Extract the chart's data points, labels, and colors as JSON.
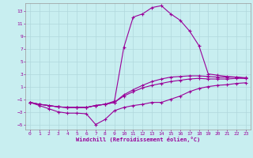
{
  "xlabel": "Windchill (Refroidissement éolien,°C)",
  "xlim": [
    -0.5,
    23.5
  ],
  "ylim": [
    -5.8,
    14.2
  ],
  "yticks": [
    -5,
    -3,
    -1,
    1,
    3,
    5,
    7,
    9,
    11,
    13
  ],
  "xticks": [
    0,
    1,
    2,
    3,
    4,
    5,
    6,
    7,
    8,
    9,
    10,
    11,
    12,
    13,
    14,
    15,
    16,
    17,
    18,
    19,
    20,
    21,
    22,
    23
  ],
  "bg_color": "#c8eef0",
  "grid_color": "#b0d8dc",
  "line_color": "#990099",
  "line1": [
    -1.5,
    -2.0,
    -2.5,
    -3.0,
    -3.2,
    -3.2,
    -3.3,
    -5.0,
    -4.2,
    -2.8,
    -2.3,
    -2.0,
    -1.8,
    -1.5,
    -1.5,
    -1.0,
    -0.5,
    0.2,
    0.7,
    1.0,
    1.2,
    1.3,
    1.5,
    1.6
  ],
  "line2": [
    -1.5,
    -1.8,
    -2.0,
    -2.2,
    -2.3,
    -2.3,
    -2.3,
    -2.0,
    -1.8,
    -1.5,
    -0.5,
    0.2,
    0.8,
    1.2,
    1.5,
    1.8,
    2.0,
    2.2,
    2.3,
    2.2,
    2.2,
    2.2,
    2.3,
    2.3
  ],
  "line3": [
    -1.5,
    -1.8,
    -2.0,
    -2.2,
    -2.3,
    -2.3,
    -2.3,
    -2.0,
    -1.8,
    -1.5,
    -0.3,
    0.5,
    1.2,
    1.8,
    2.2,
    2.5,
    2.6,
    2.7,
    2.7,
    2.6,
    2.5,
    2.5,
    2.5,
    2.4
  ],
  "line4": [
    -1.5,
    -1.8,
    -2.0,
    -2.2,
    -2.3,
    -2.3,
    -2.3,
    -2.0,
    -1.8,
    -1.3,
    7.2,
    12.0,
    12.5,
    13.5,
    13.8,
    12.5,
    11.5,
    9.8,
    7.5,
    3.0,
    2.8,
    2.6,
    2.5,
    2.3
  ]
}
